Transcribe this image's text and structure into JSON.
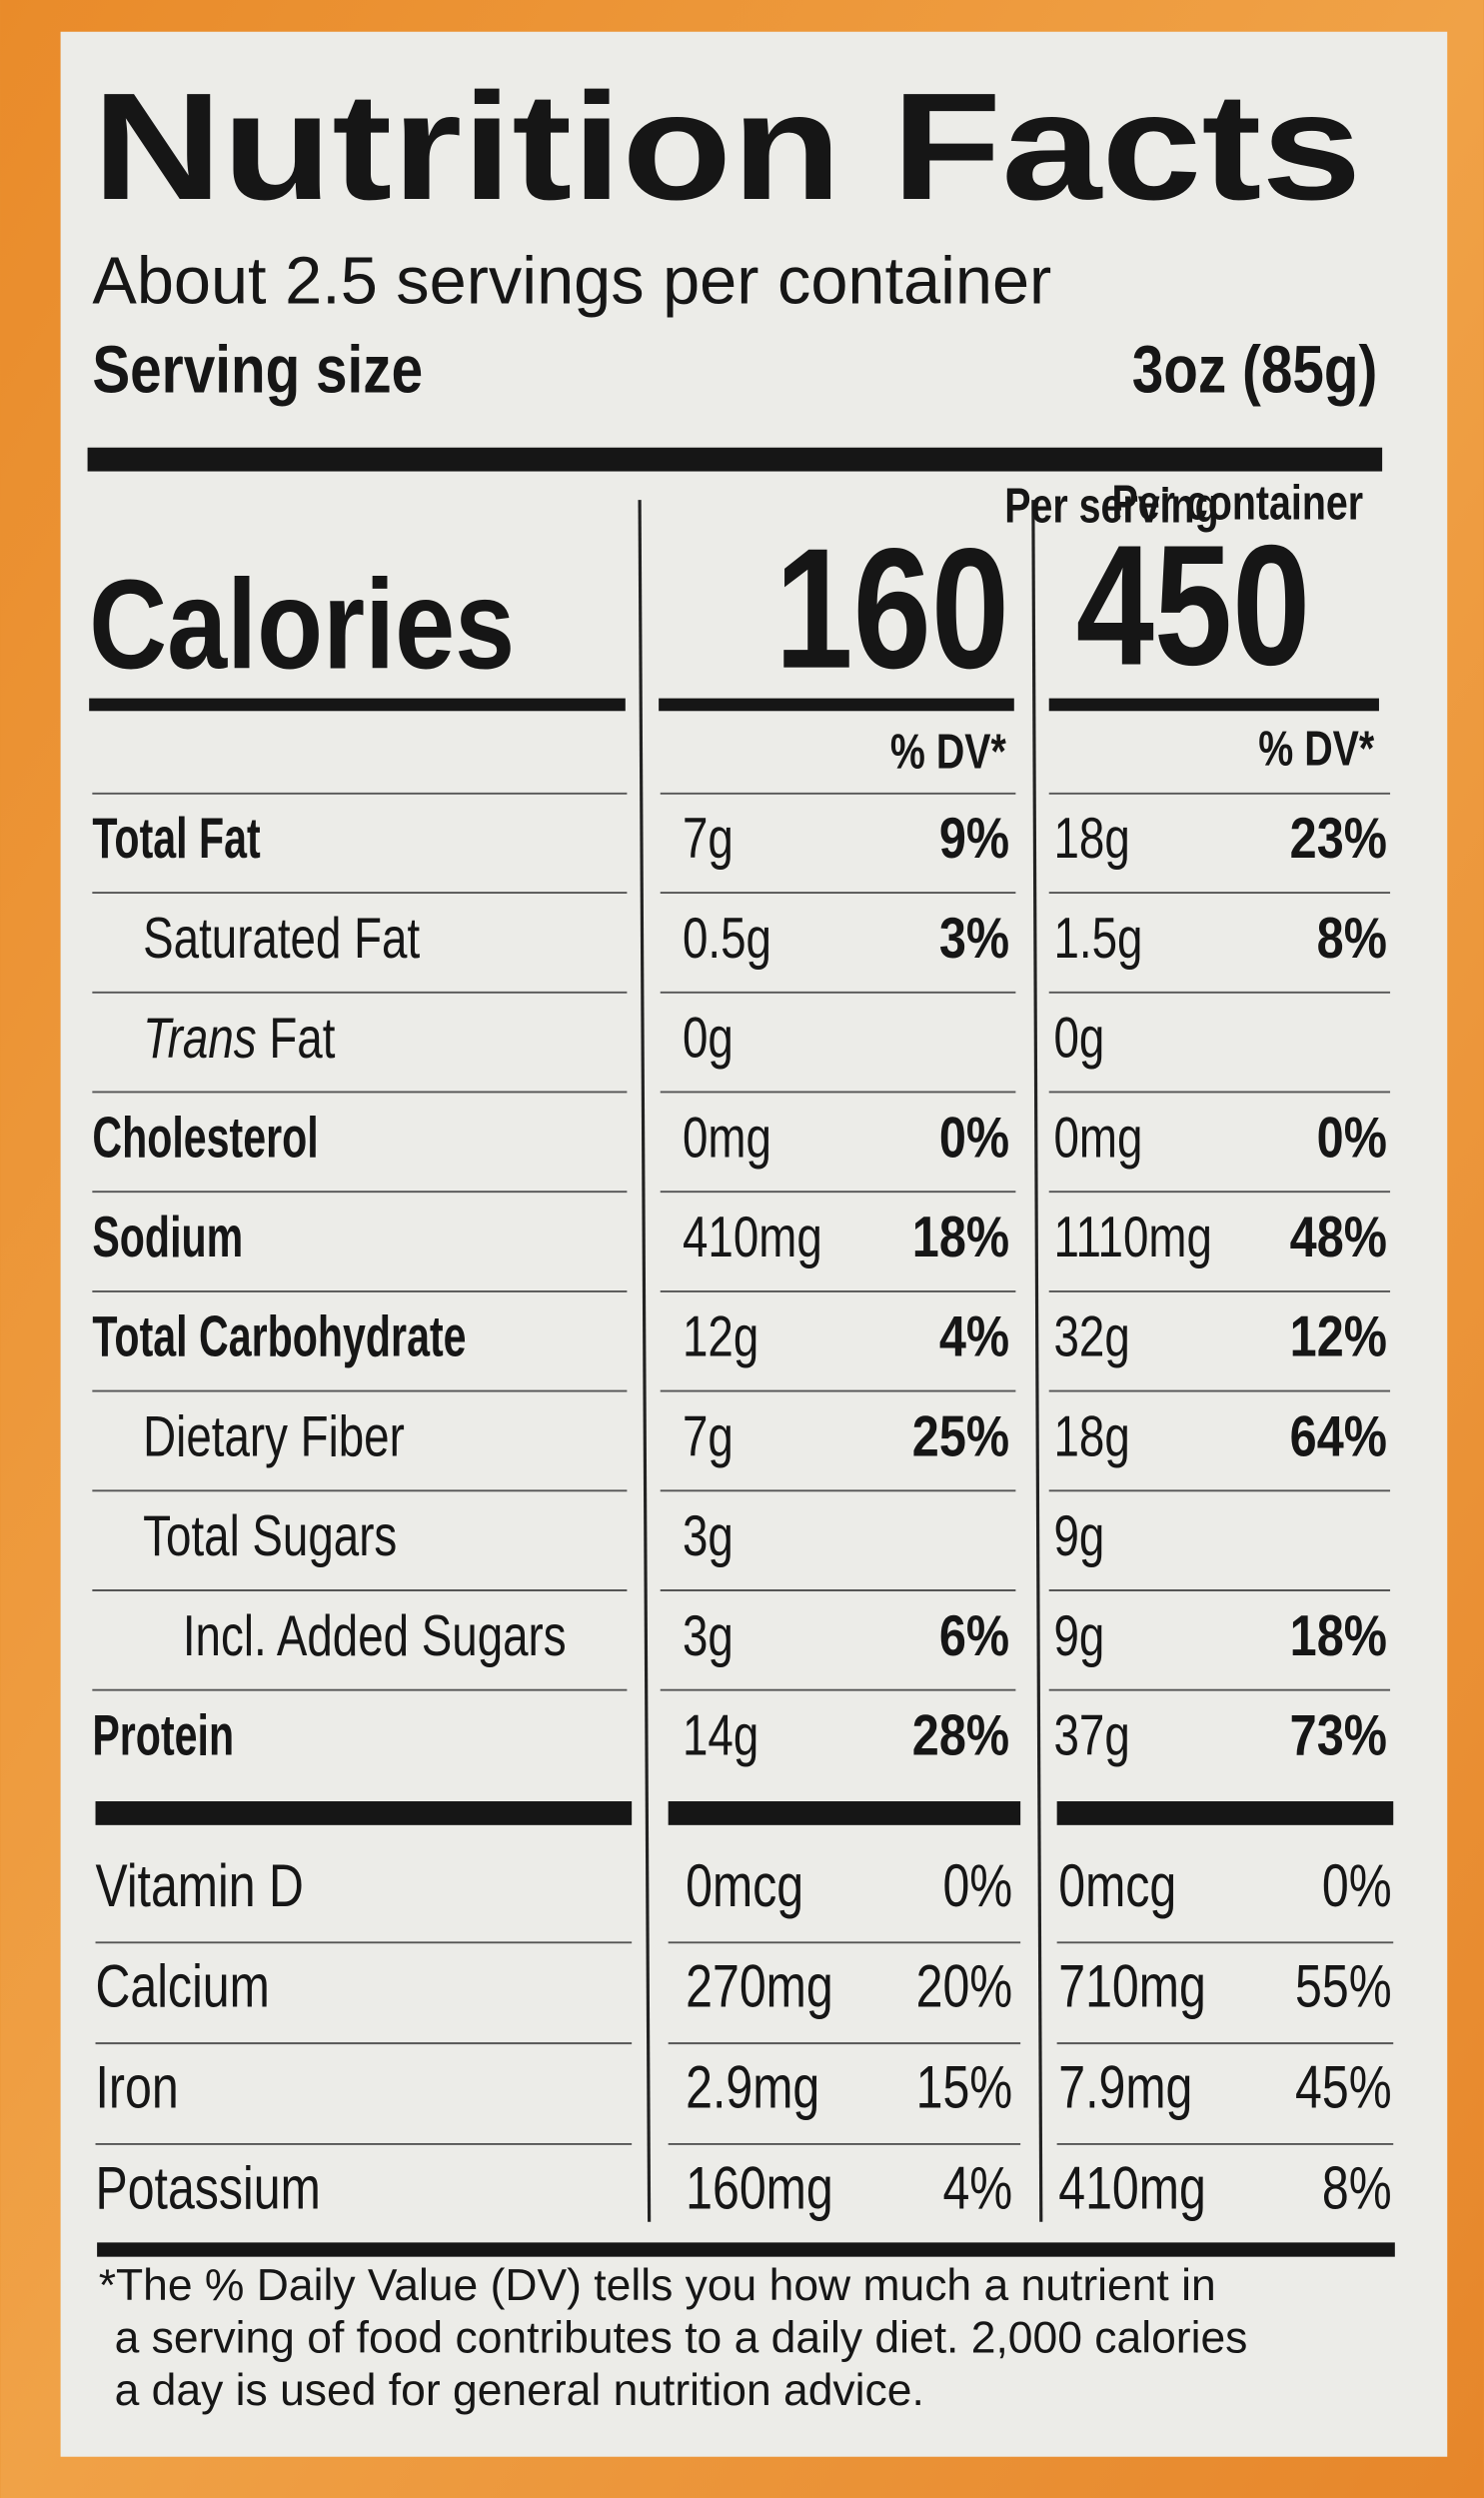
{
  "title": "Nutrition Facts",
  "servings": "About 2.5 servings per container",
  "serving_size_label": "Serving size",
  "serving_size": "3oz (85g)",
  "columns": [
    "Per serving",
    "Per container"
  ],
  "calories_label": "Calories",
  "calories": [
    "160",
    "450"
  ],
  "dv_header": "% DV*",
  "nutrients": [
    {
      "name": "Total Fat",
      "bold": true,
      "indent": 0,
      "serving": "7g",
      "serving_dv": "9%",
      "container": "18g",
      "container_dv": "23%"
    },
    {
      "name": "Saturated Fat",
      "bold": false,
      "indent": 1,
      "serving": "0.5g",
      "serving_dv": "3%",
      "container": "1.5g",
      "container_dv": "8%"
    },
    {
      "italic_prefix": "Trans",
      "name": "Fat",
      "bold": false,
      "indent": 1,
      "serving": "0g",
      "container": "0g"
    },
    {
      "name": "Cholesterol",
      "bold": true,
      "indent": 0,
      "serving": "0mg",
      "serving_dv": "0%",
      "container": "0mg",
      "container_dv": "0%"
    },
    {
      "name": "Sodium",
      "bold": true,
      "indent": 0,
      "serving": "410mg",
      "serving_dv": "18%",
      "container": "1110mg",
      "container_dv": "48%"
    },
    {
      "name": "Total Carbohydrate",
      "bold": true,
      "indent": 0,
      "serving": "12g",
      "serving_dv": "4%",
      "container": "32g",
      "container_dv": "12%"
    },
    {
      "name": "Dietary Fiber",
      "bold": false,
      "indent": 1,
      "serving": "7g",
      "serving_dv": "25%",
      "container": "18g",
      "container_dv": "64%"
    },
    {
      "name": "Total Sugars",
      "bold": false,
      "indent": 1,
      "serving": "3g",
      "container": "9g"
    },
    {
      "name": "Incl. Added Sugars",
      "bold": false,
      "indent": 2,
      "serving": "3g",
      "serving_dv": "6%",
      "container": "9g",
      "container_dv": "18%"
    },
    {
      "name": "Protein",
      "bold": true,
      "indent": 0,
      "serving": "14g",
      "serving_dv": "28%",
      "container": "37g",
      "container_dv": "73%"
    }
  ],
  "vitamins": [
    {
      "name": "Vitamin D",
      "serving": "0mcg",
      "serving_dv": "0%",
      "container": "0mcg",
      "container_dv": "0%"
    },
    {
      "name": "Calcium",
      "serving": "270mg",
      "serving_dv": "20%",
      "container": "710mg",
      "container_dv": "55%"
    },
    {
      "name": "Iron",
      "serving": "2.9mg",
      "serving_dv": "15%",
      "container": "7.9mg",
      "container_dv": "45%"
    },
    {
      "name": "Potassium",
      "serving": "160mg",
      "serving_dv": "4%",
      "container": "410mg",
      "container_dv": "8%"
    }
  ],
  "footnote": [
    "*The % Daily Value (DV) tells you how much a nutrient in",
    "a serving of food contributes to a daily diet. 2,000 calories",
    "a day is used for general nutrition advice."
  ]
}
